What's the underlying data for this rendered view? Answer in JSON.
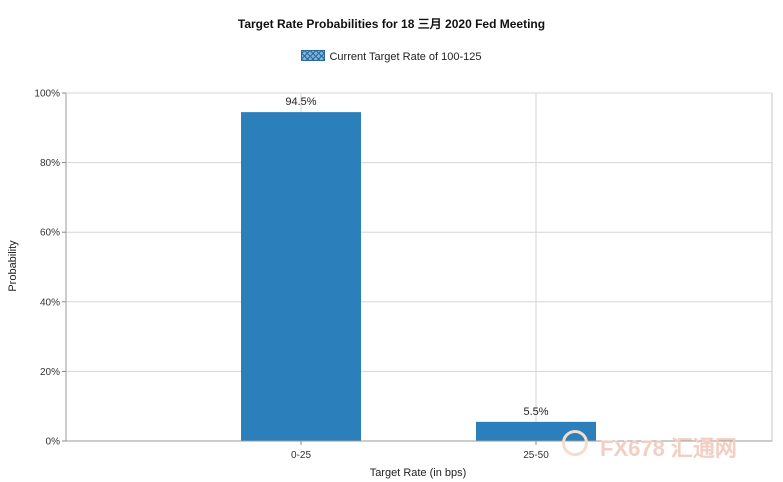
{
  "chart_data": {
    "type": "bar",
    "title": "Target Rate Probabilities for 18 三月 2020 Fed Meeting",
    "legend": {
      "position": "top",
      "entries": [
        "Current Target Rate of 100-125"
      ]
    },
    "categories": [
      "0-25",
      "25-50"
    ],
    "series": [
      {
        "name": "Current Target Rate of 100-125",
        "values": [
          94.5,
          5.5
        ],
        "color": "#2b7fba"
      }
    ],
    "data_labels": [
      "94.5%",
      "5.5%"
    ],
    "xlabel": "Target Rate (in bps)",
    "ylabel": "Probability",
    "ylim": [
      0,
      100
    ],
    "y_ticks": [
      "0%",
      "20%",
      "40%",
      "60%",
      "80%",
      "100%"
    ],
    "grid": true
  },
  "watermark": {
    "text": "FX678 汇通网"
  }
}
